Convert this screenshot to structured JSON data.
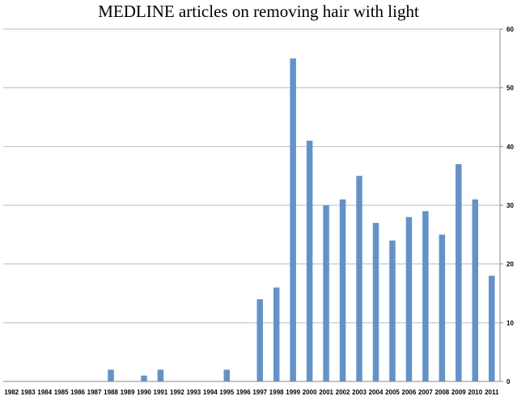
{
  "chart_data": {
    "type": "bar",
    "title": "MEDLINE articles on removing hair with light",
    "categories": [
      "1982",
      "1983",
      "1984",
      "1985",
      "1986",
      "1987",
      "1988",
      "1989",
      "1990",
      "1991",
      "1992",
      "1993",
      "1994",
      "1995",
      "1996",
      "1997",
      "1998",
      "1999",
      "2000",
      "2001",
      "2002",
      "2003",
      "2004",
      "2005",
      "2006",
      "2007",
      "2008",
      "2009",
      "2010",
      "2011"
    ],
    "values": [
      0,
      0,
      0,
      0,
      0,
      0,
      2,
      0,
      1,
      2,
      0,
      0,
      0,
      2,
      0,
      14,
      16,
      55,
      41,
      30,
      31,
      35,
      27,
      24,
      28,
      29,
      25,
      37,
      31,
      18
    ],
    "yticks": [
      "0",
      "10",
      "20",
      "30",
      "40",
      "50",
      "60"
    ],
    "ylim": [
      0,
      60
    ],
    "y_axis_side": "right",
    "grid": true,
    "bar_color": "#6492c8",
    "grid_color": "#bdbdbd"
  }
}
